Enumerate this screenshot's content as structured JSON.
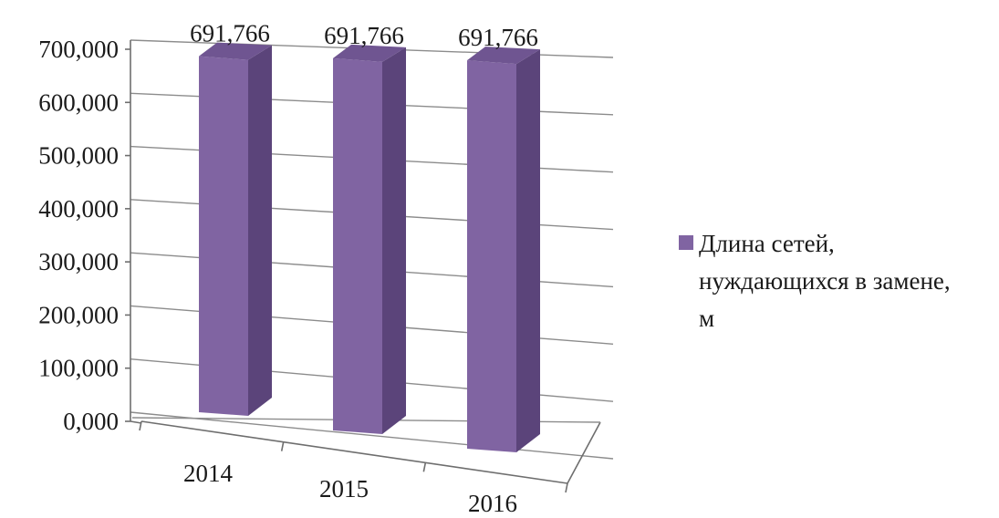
{
  "chart_data": {
    "type": "bar",
    "categories": [
      "2014",
      "2015",
      "2016"
    ],
    "series": [
      {
        "name": "Длина сетей, нуждающихся в замене, м",
        "values": [
          691.766,
          691.766,
          691.766
        ],
        "data_labels": [
          "691,766",
          "691,766",
          "691,766"
        ],
        "color": "#8064a2"
      }
    ],
    "y_tick_labels": [
      "0,000",
      "100,000",
      "200,000",
      "300,000",
      "400,000",
      "500,000",
      "600,000",
      "700,000"
    ],
    "ylim": [
      0,
      700
    ],
    "grid": true,
    "legend_position": "right",
    "legend_lines": [
      "Длина сетей,",
      "нуждающихся в замене,",
      "м"
    ],
    "style": "3d-column",
    "colors": {
      "bar_front": "#8064a2",
      "bar_side": "#5b447a",
      "bar_top": "#6f5591",
      "legend_swatch": "#8064a2"
    }
  }
}
